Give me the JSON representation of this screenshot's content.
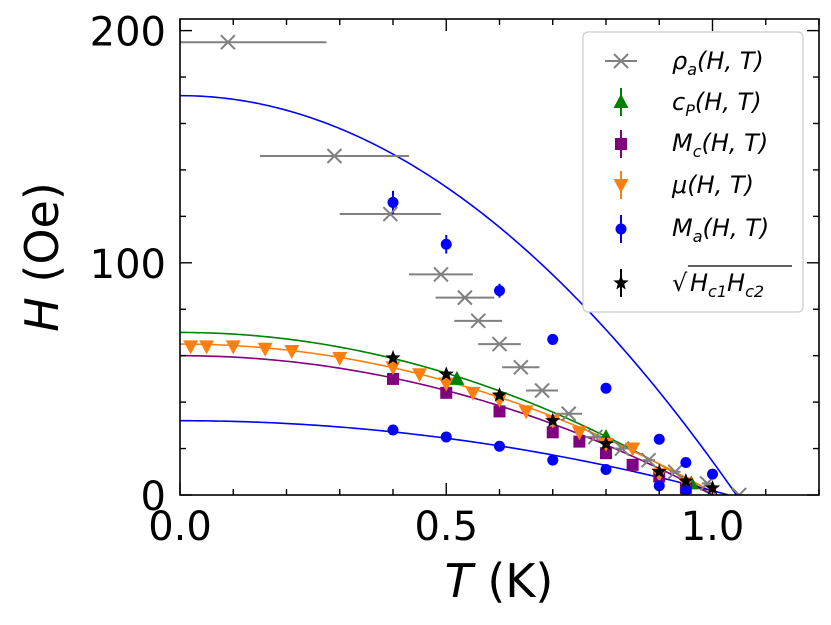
{
  "chart_data": {
    "type": "scatter",
    "xlabel_symbol": "T",
    "xlabel_unit": " (K)",
    "ylabel_symbol": "H",
    "ylabel_unit": " (Oe)",
    "xlim": [
      0.0,
      1.2
    ],
    "ylim": [
      0,
      205
    ],
    "xticks": [
      {
        "value": 0.0,
        "label": "0.0"
      },
      {
        "value": 0.5,
        "label": "0.5"
      },
      {
        "value": 1.0,
        "label": "1.0"
      }
    ],
    "yticks": [
      {
        "value": 0,
        "label": "0"
      },
      {
        "value": 100,
        "label": "100"
      },
      {
        "value": 200,
        "label": "200"
      }
    ],
    "legend_position": "top-right",
    "series": [
      {
        "name": "ρa(H,T)",
        "legend": "ρ_a(H, T)",
        "marker": "x",
        "color": "#808080",
        "points": [
          {
            "x": 0.09,
            "y": 195,
            "xerr": 0.185
          },
          {
            "x": 0.29,
            "y": 146,
            "xerr": 0.14
          },
          {
            "x": 0.395,
            "y": 121,
            "xerr": 0.095
          },
          {
            "x": 0.49,
            "y": 95,
            "xerr": 0.06
          },
          {
            "x": 0.535,
            "y": 85,
            "xerr": 0.055
          },
          {
            "x": 0.56,
            "y": 75,
            "xerr": 0.045
          },
          {
            "x": 0.6,
            "y": 65,
            "xerr": 0.04
          },
          {
            "x": 0.64,
            "y": 55,
            "xerr": 0.035
          },
          {
            "x": 0.68,
            "y": 45,
            "xerr": 0.03
          },
          {
            "x": 0.73,
            "y": 35,
            "xerr": 0.025
          },
          {
            "x": 0.78,
            "y": 25,
            "xerr": 0.02
          },
          {
            "x": 0.83,
            "y": 20,
            "xerr": 0.015
          },
          {
            "x": 0.88,
            "y": 15,
            "xerr": 0.012
          },
          {
            "x": 0.93,
            "y": 10,
            "xerr": 0.01
          },
          {
            "x": 0.99,
            "y": 5,
            "xerr": 0.01
          },
          {
            "x": 1.05,
            "y": 0,
            "xerr": 0.0
          }
        ]
      },
      {
        "name": "cP(H,T)",
        "legend": "c_P(H, T)",
        "marker": "triangle-up",
        "color": "#008000",
        "points": [
          {
            "x": 0.52,
            "y": 50
          },
          {
            "x": 0.8,
            "y": 25
          },
          {
            "x": 0.96,
            "y": 5
          }
        ]
      },
      {
        "name": "Mc(H,T)",
        "legend": "M_c(H, T)",
        "marker": "square",
        "color": "#800080",
        "points": [
          {
            "x": 0.4,
            "y": 50
          },
          {
            "x": 0.5,
            "y": 44
          },
          {
            "x": 0.6,
            "y": 36
          },
          {
            "x": 0.7,
            "y": 27
          },
          {
            "x": 0.75,
            "y": 23
          },
          {
            "x": 0.8,
            "y": 18
          },
          {
            "x": 0.85,
            "y": 13
          },
          {
            "x": 0.9,
            "y": 8
          },
          {
            "x": 0.95,
            "y": 3
          }
        ]
      },
      {
        "name": "μ(H,T)",
        "legend": "μ(H, T)",
        "marker": "triangle-down",
        "color": "#ff7f0e",
        "points": [
          {
            "x": 0.02,
            "y": 64
          },
          {
            "x": 0.05,
            "y": 64
          },
          {
            "x": 0.1,
            "y": 64
          },
          {
            "x": 0.16,
            "y": 63
          },
          {
            "x": 0.21,
            "y": 62
          },
          {
            "x": 0.3,
            "y": 59
          },
          {
            "x": 0.4,
            "y": 55
          },
          {
            "x": 0.45,
            "y": 52
          },
          {
            "x": 0.5,
            "y": 48
          },
          {
            "x": 0.55,
            "y": 44
          },
          {
            "x": 0.6,
            "y": 41
          },
          {
            "x": 0.65,
            "y": 36
          },
          {
            "x": 0.7,
            "y": 32
          },
          {
            "x": 0.75,
            "y": 27
          },
          {
            "x": 0.8,
            "y": 22
          },
          {
            "x": 0.85,
            "y": 20
          },
          {
            "x": 0.9,
            "y": 9
          },
          {
            "x": 0.95,
            "y": 5
          }
        ]
      },
      {
        "name": "Ma(H,T)",
        "legend": "M_a(H, T)",
        "marker": "circle",
        "color": "#0000ff",
        "points": [
          {
            "x": 0.4,
            "y": 126,
            "yerr": 5
          },
          {
            "x": 0.5,
            "y": 108,
            "yerr": 4
          },
          {
            "x": 0.6,
            "y": 88,
            "yerr": 3
          },
          {
            "x": 0.7,
            "y": 67,
            "yerr": 2
          },
          {
            "x": 0.8,
            "y": 46
          },
          {
            "x": 0.9,
            "y": 24
          },
          {
            "x": 0.95,
            "y": 14
          },
          {
            "x": 1.0,
            "y": 9
          },
          {
            "x": 0.4,
            "y": 28
          },
          {
            "x": 0.5,
            "y": 25
          },
          {
            "x": 0.6,
            "y": 21
          },
          {
            "x": 0.7,
            "y": 15
          },
          {
            "x": 0.8,
            "y": 11
          },
          {
            "x": 0.9,
            "y": 4
          },
          {
            "x": 0.95,
            "y": 2
          }
        ]
      },
      {
        "name": "sqrt(Hc1Hc2)",
        "legend": "√(H_c1 H_c2)",
        "marker": "star",
        "color": "#000000",
        "points": [
          {
            "x": 0.4,
            "y": 59
          },
          {
            "x": 0.5,
            "y": 52
          },
          {
            "x": 0.6,
            "y": 43
          },
          {
            "x": 0.7,
            "y": 32
          },
          {
            "x": 0.8,
            "y": 22
          },
          {
            "x": 0.9,
            "y": 10
          },
          {
            "x": 0.95,
            "y": 6
          },
          {
            "x": 1.0,
            "y": 3
          }
        ]
      }
    ],
    "fit_curves": [
      {
        "name": "fit-blue-upper",
        "color": "#0000ff",
        "H0": 172,
        "Tc": 1.045
      },
      {
        "name": "fit-green",
        "color": "#008000",
        "H0": 70,
        "Tc": 1.0
      },
      {
        "name": "fit-orange",
        "color": "#ff7f0e",
        "H0": 65,
        "Tc": 1.01
      },
      {
        "name": "fit-purple",
        "color": "#800080",
        "H0": 60,
        "Tc": 1.0
      },
      {
        "name": "fit-blue-lower",
        "color": "#0000ff",
        "H0": 32,
        "Tc": 1.03
      }
    ]
  }
}
